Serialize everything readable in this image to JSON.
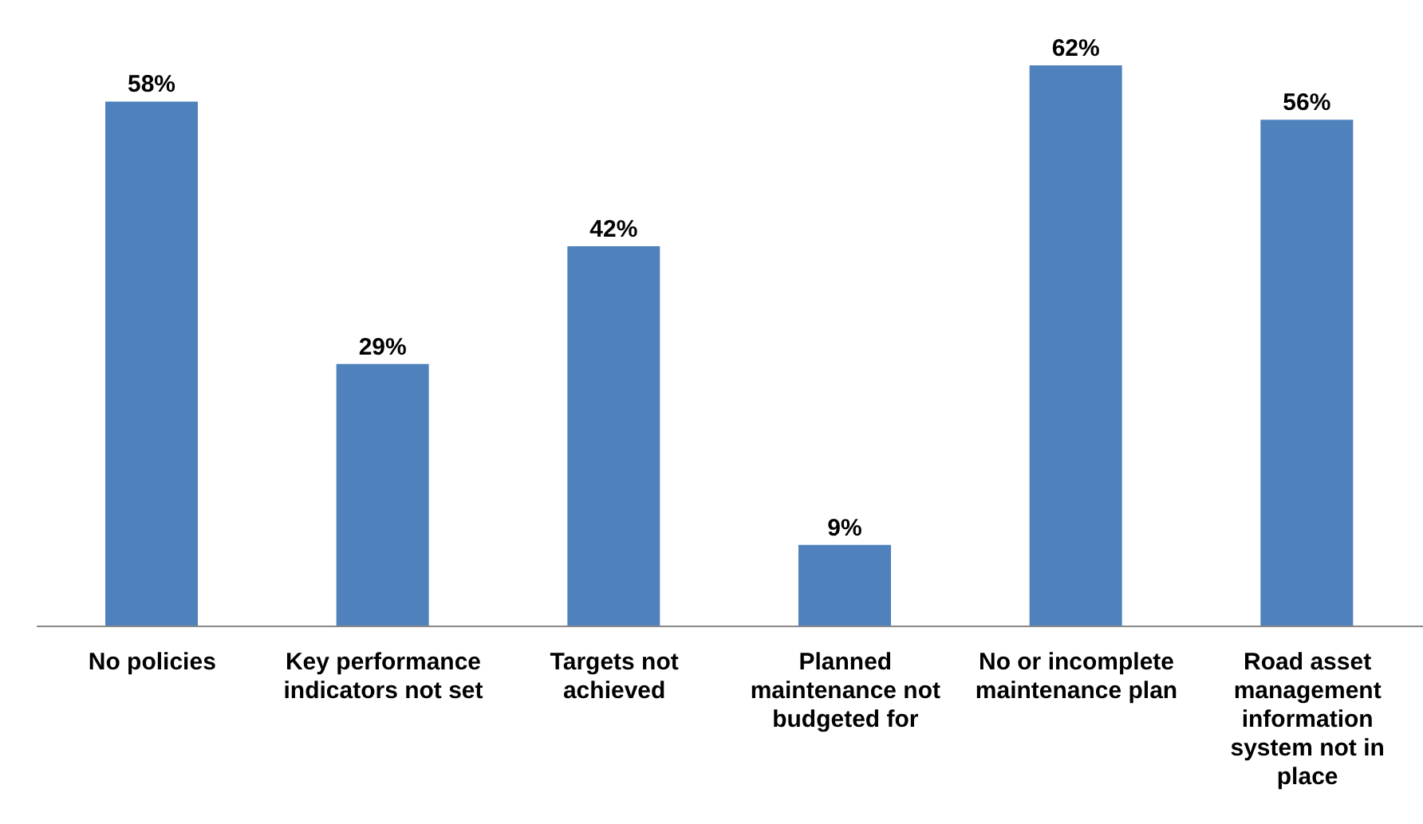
{
  "chart_data": {
    "type": "bar",
    "categories": [
      "No policies",
      "Key performance indicators not set",
      "Targets not achieved",
      "Planned maintenance not budgeted for",
      "No or incomplete maintenance plan",
      "Road asset management information system not in place"
    ],
    "values": [
      58,
      29,
      42,
      9,
      62,
      56
    ],
    "value_labels": [
      "58%",
      "29%",
      "42%",
      "9%",
      "62%",
      "56%"
    ],
    "color": "#4f81bd",
    "grid": false,
    "legend": false
  }
}
